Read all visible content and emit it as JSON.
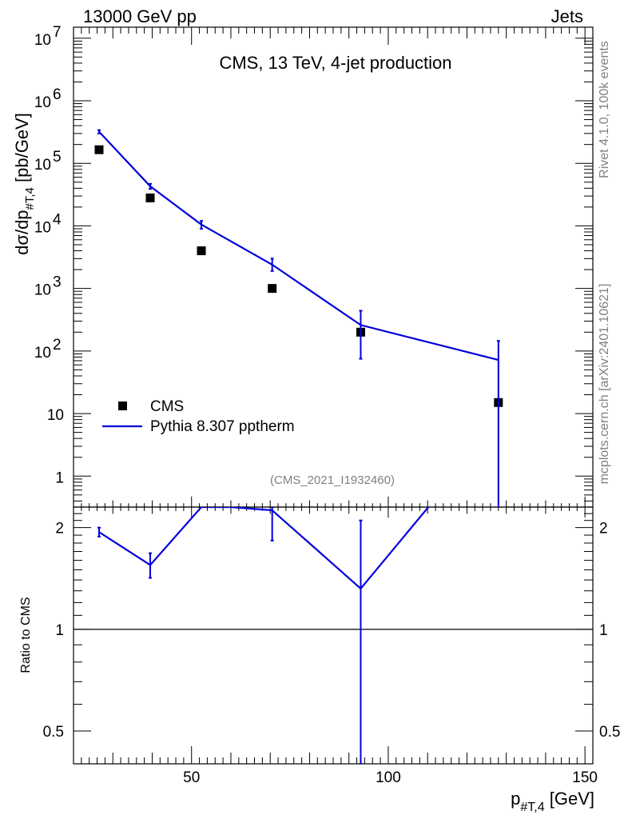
{
  "header": {
    "left": "13000 GeV pp",
    "right": "Jets"
  },
  "plot_title": "CMS, 13 TeV, 4-jet production",
  "side_text": {
    "top": "Rivet 4.1.0,  100k events",
    "bottom": "mcplots.cern.ch [arXiv:2401.10621]"
  },
  "analysis_tag": "(CMS_2021_I1932460)",
  "axes": {
    "y_main_label": "dσ/dp_{#T,4} [pb/GeV]",
    "y_main_parts": {
      "a": "dσ/dp",
      "sub": "#T,4",
      "b": " [pb/GeV]"
    },
    "y_ratio_label": "Ratio to CMS",
    "x_label": "p_{#T,4} [GeV]",
    "x_parts": {
      "a": "p",
      "sub": "#T,4",
      "b": " [GeV]"
    }
  },
  "legend": [
    {
      "label": "CMS",
      "color": "#000000",
      "kind": "marker"
    },
    {
      "label": "Pythia 8.307 pptherm",
      "color": "#0000dd",
      "kind": "line"
    }
  ],
  "chart_data": [
    {
      "type": "scatter",
      "title": "CMS, 13 TeV, 4-jet production",
      "xlabel": "p_{#T,4} [GeV]",
      "ylabel": "dσ/dp_{#T,4} [pb/GeV]",
      "xlim": [
        20,
        152
      ],
      "ylim": [
        0.32,
        15000000
      ],
      "yscale": "log",
      "x_ticks": [
        50,
        100,
        150
      ],
      "y_tick_labels": [
        {
          "v": 1,
          "b": "1",
          "e": ""
        },
        {
          "v": 10,
          "b": "10",
          "e": ""
        },
        {
          "v": 100,
          "b": "10",
          "e": "2"
        },
        {
          "v": 1000,
          "b": "10",
          "e": "3"
        },
        {
          "v": 10000,
          "b": "10",
          "e": "4"
        },
        {
          "v": 100000,
          "b": "10",
          "e": "5"
        },
        {
          "v": 1000000,
          "b": "10",
          "e": "6"
        },
        {
          "v": 10000000,
          "b": "10",
          "e": "7"
        }
      ],
      "series": [
        {
          "name": "CMS",
          "color": "#000000",
          "x": [
            26.5,
            39.5,
            52.5,
            70.5,
            93,
            128
          ],
          "y": [
            165000,
            28000,
            4000,
            1000,
            200,
            15
          ]
        },
        {
          "name": "Pythia 8.307 pptherm",
          "color": "#0000dd",
          "x": [
            26.5,
            39.5,
            52.5,
            70.5,
            93,
            128
          ],
          "y": [
            320000,
            43000,
            10500,
            2400,
            260,
            72
          ],
          "err_low": [
            300000,
            39000,
            9000,
            1900,
            75,
            0.3
          ],
          "err_high": [
            340000,
            47000,
            12000,
            3000,
            440,
            145
          ]
        }
      ]
    },
    {
      "type": "line",
      "ylabel": "Ratio to CMS",
      "yscale": "log",
      "ylim": [
        0.4,
        2.3
      ],
      "y_ticks": [
        0.5,
        1,
        2
      ],
      "y_tick_text": [
        "0.5",
        "1",
        "2"
      ],
      "reference": 1,
      "series": [
        {
          "name": "Pythia 8.307 pptherm / CMS",
          "color": "#0000dd",
          "x": [
            26.5,
            39.5,
            52.5,
            60,
            70.5,
            93,
            110.2
          ],
          "y": [
            1.94,
            1.55,
            2.3,
            2.3,
            2.25,
            1.32,
            2.3
          ],
          "err_low": [
            1.88,
            1.42,
            null,
            null,
            1.83,
            0.4,
            null
          ],
          "err_high": [
            2.0,
            1.68,
            null,
            null,
            2.3,
            2.1,
            null
          ]
        }
      ]
    }
  ]
}
